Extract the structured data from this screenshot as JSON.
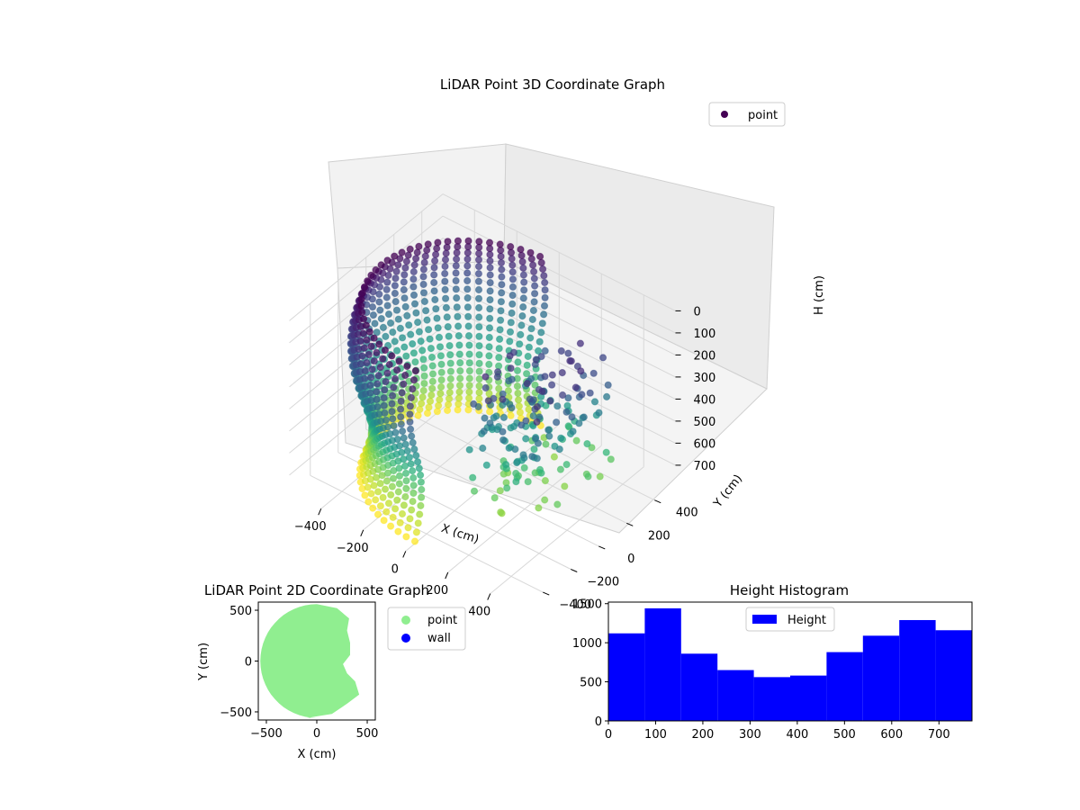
{
  "figure": {
    "background": "#ffffff"
  },
  "chart_data": [
    {
      "id": "scatter3d",
      "type": "scatter",
      "title": "LiDAR Point 3D Coordinate Graph",
      "xlabel": "X (cm)",
      "ylabel": "Y (cm)",
      "zlabel": "H (cm)",
      "xticks": [
        "−400",
        "−200",
        "0",
        "200",
        "400"
      ],
      "yticks": [
        "−400",
        "−200",
        "0",
        "200",
        "400"
      ],
      "zticks": [
        "0",
        "100",
        "200",
        "300",
        "400",
        "500",
        "600",
        "700"
      ],
      "xlim": [
        -550,
        550
      ],
      "ylim": [
        -550,
        550
      ],
      "zlim": [
        0,
        780
      ],
      "z_inverted": true,
      "grid": true,
      "colormap": "viridis",
      "legend": {
        "entries": [
          "point"
        ],
        "placement": "top-right"
      },
      "shape": {
        "description_values": "cylindrical wall of points, radius ~520 cm, heights 0-770 cm, open toward +X",
        "radius": 520,
        "height_range": [
          0,
          770
        ],
        "azimuth_coverage_deg": [
          95,
          270
        ],
        "scattered_obstacle_region_x": [
          100,
          450
        ],
        "scattered_obstacle_region_y": [
          -300,
          300
        ],
        "scattered_obstacle_height": [
          100,
          650
        ]
      }
    },
    {
      "id": "scatter2d",
      "type": "scatter",
      "title": "LiDAR Point 2D Coordinate Graph",
      "xlabel": "X (cm)",
      "ylabel": "Y (cm)",
      "xticks": [
        "−500",
        "0",
        "500"
      ],
      "yticks": [
        "−500",
        "0",
        "500"
      ],
      "xlim": [
        -580,
        580
      ],
      "ylim": [
        -580,
        580
      ],
      "series": [
        {
          "name": "point",
          "color": "#90ee90"
        },
        {
          "name": "wall",
          "color": "#0000ff"
        }
      ],
      "legend": {
        "placement": "outside-right"
      },
      "shape": {
        "description_values": "filled half-disc covering x from -550 to ~400, y from -560 to 560",
        "radius": 560,
        "right_edge_x_approx": 380
      }
    },
    {
      "id": "histogram",
      "type": "bar",
      "title": "Height Histogram",
      "xlabel": "",
      "ylabel": "",
      "bin_edges": [
        0,
        77,
        154,
        231,
        308,
        385,
        462,
        539,
        616,
        693,
        770
      ],
      "values": [
        1120,
        1440,
        860,
        650,
        560,
        580,
        880,
        1090,
        1290,
        1160
      ],
      "xlim": [
        0,
        770
      ],
      "ylim": [
        0,
        1520
      ],
      "xticks": [
        "0",
        "100",
        "200",
        "300",
        "400",
        "500",
        "600",
        "700"
      ],
      "yticks": [
        "0",
        "500",
        "1000",
        "1500"
      ],
      "color": "#0000ff",
      "legend": {
        "entries": [
          "Height"
        ],
        "placement": "top-center"
      }
    }
  ]
}
